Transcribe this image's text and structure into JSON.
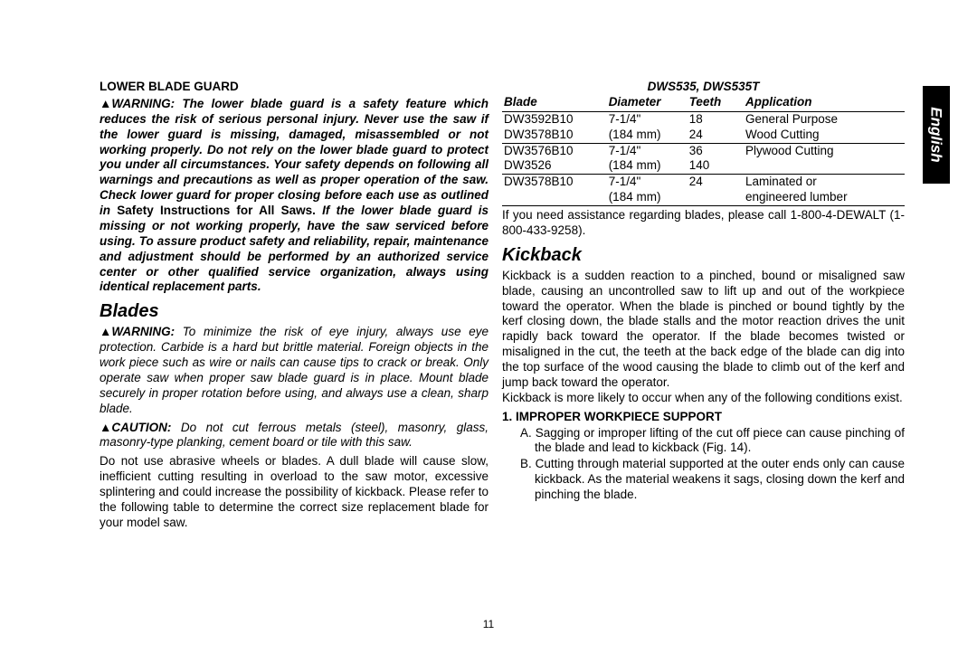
{
  "language_tab": "English",
  "page_number": "11",
  "left": {
    "h1": "LOWER BLADE GUARD",
    "warn_lead": "WARNING:",
    "warn_body_a": "The lower blade guard is a safety feature which reduces the risk of serious personal injury. Never use the saw if the lower guard is missing, damaged, misassembled or not working properly. Do not rely on the lower blade guard to protect you under all circumstances. Your safety depends on following all warnings and precautions as well as proper operation of the saw. Check lower guard for proper closing before each use as outlined in ",
    "warn_body_b_noital": "Safety Instructions for All Saws. ",
    "warn_body_c": "If the lower blade guard is missing or not working properly, have the saw serviced before using. To assure product safety and reliability, repair, maintenance and adjustment should be performed by an authorized service center or other qualified service organization, always using identical replacement parts.",
    "h2": "Blades",
    "warn2_lead": "WARNING:",
    "warn2_body": "To minimize the risk of eye injury, always use eye protection. Carbide is a hard but brittle material. Foreign objects in the work piece such as wire or nails can cause tips to crack or break. Only operate saw when proper saw blade guard is in place. Mount blade securely in proper rotation before using, and always use a clean, sharp blade.",
    "caution_lead": "CAUTION:",
    "caution_body": "Do not cut ferrous metals (steel), masonry, glass, masonry-type planking, cement board or tile with this saw.",
    "plain": "Do not use abrasive wheels or blades. A dull blade will cause slow, inefficient cutting resulting in overload to the saw motor, excessive splintering and could increase the possibility of kickback. Please refer to the following table to determine the correct size replacement blade for your model saw."
  },
  "right": {
    "table_title": "DWS535, DWS535T",
    "cols": [
      "Blade",
      "Diameter",
      "Teeth",
      "Application"
    ],
    "rows": [
      {
        "c": [
          "DW3592B10",
          "7-1/4\"",
          "18",
          "General Purpose"
        ],
        "sep": false
      },
      {
        "c": [
          "DW3578B10",
          "(184 mm)",
          "24",
          "Wood Cutting"
        ],
        "sep": true
      },
      {
        "c": [
          "DW3576B10",
          "7-1/4\"",
          "36",
          "Plywood Cutting"
        ],
        "sep": false
      },
      {
        "c": [
          "DW3526",
          "(184 mm)",
          "140",
          ""
        ],
        "sep": true
      },
      {
        "c": [
          "DW3578B10",
          "7-1/4\"",
          "24",
          "Laminated or"
        ],
        "sep": false
      },
      {
        "c": [
          "",
          "(184 mm)",
          "",
          "engineered lumber"
        ],
        "sep": true
      }
    ],
    "after_table": "If you need assistance regarding blades, please call 1-800-4-DEWALT (1-800-433-9258).",
    "h2": "Kickback",
    "p1": "Kickback is a sudden reaction to a pinched, bound or misaligned saw blade, causing an uncontrolled saw to lift up and out of the workpiece toward the operator. When the blade is pinched or bound tightly by the kerf closing down, the blade stalls and the motor reaction drives the unit rapidly back toward the operator. If the blade becomes twisted or misaligned in the cut, the teeth at the back edge of the blade can dig into the top surface of the wood causing the blade to climb out of the kerf and jump back toward the operator.",
    "p2": "Kickback is more likely to occur when any of the following conditions exist.",
    "num_h": "1. IMPROPER WORKPIECE SUPPORT",
    "sub": [
      "A. Sagging or improper lifting of the cut off piece can cause pinching of the blade and lead to kickback (Fig. 14).",
      "B. Cutting through material supported at the outer ends only can cause kickback. As the material weakens it sags, closing down the kerf and pinching the blade."
    ]
  }
}
